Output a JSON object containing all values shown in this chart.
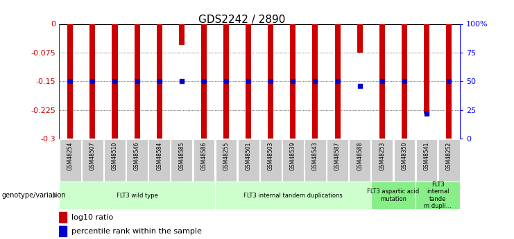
{
  "title": "GDS2242 / 2890",
  "samples": [
    "GSM48254",
    "GSM48507",
    "GSM48510",
    "GSM48546",
    "GSM48584",
    "GSM48585",
    "GSM48586",
    "GSM48255",
    "GSM48501",
    "GSM48503",
    "GSM48539",
    "GSM48543",
    "GSM48587",
    "GSM48588",
    "GSM48253",
    "GSM48350",
    "GSM48541",
    "GSM48252"
  ],
  "log10_ratio": [
    -0.3,
    -0.3,
    -0.3,
    -0.3,
    -0.3,
    -0.055,
    -0.3,
    -0.3,
    -0.3,
    -0.3,
    -0.3,
    -0.3,
    -0.3,
    -0.075,
    -0.3,
    -0.3,
    -0.235,
    -0.3
  ],
  "percentile_rank": [
    0.5,
    0.5,
    0.5,
    0.5,
    0.5,
    0.5,
    0.5,
    0.5,
    0.5,
    0.5,
    0.5,
    0.5,
    0.5,
    0.46,
    0.5,
    0.5,
    0.22,
    0.5
  ],
  "ylim_min": -0.3,
  "ylim_max": 0.0,
  "yticks_left": [
    0,
    -0.075,
    -0.15,
    -0.225,
    -0.3
  ],
  "ytick_left_labels": [
    "0",
    "-0.075",
    "-0.15",
    "-0.225",
    "-0.3"
  ],
  "yticks_right": [
    0,
    25,
    50,
    75,
    100
  ],
  "ytick_right_labels": [
    "0",
    "25",
    "50",
    "75",
    "100%"
  ],
  "bar_color": "#cc0000",
  "marker_color": "#0000cc",
  "bar_width": 0.25,
  "groups": [
    {
      "label": "FLT3 wild type",
      "start": 0,
      "end": 6,
      "color": "#ccffcc"
    },
    {
      "label": "FLT3 internal tandem duplications",
      "start": 7,
      "end": 13,
      "color": "#ccffcc"
    },
    {
      "label": "FLT3 aspartic acid\nmutation",
      "start": 14,
      "end": 15,
      "color": "#88ee88"
    },
    {
      "label": "FLT3\ninternal\ntande\nm dupli…",
      "start": 16,
      "end": 17,
      "color": "#88ee88"
    }
  ],
  "left_label": "genotype/variation",
  "legend_red": "log10 ratio",
  "legend_blue": "percentile rank within the sample"
}
